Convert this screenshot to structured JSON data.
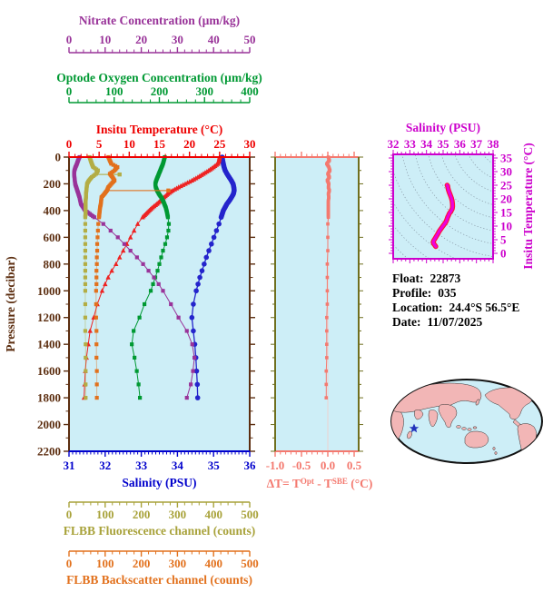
{
  "meta": {
    "rows": [
      {
        "label": "Float:",
        "value": "22873"
      },
      {
        "label": "Profile:",
        "value": "035"
      },
      {
        "label": "Location:",
        "value": "24.4°S  56.5°E"
      },
      {
        "label": "Date:",
        "value": "11/07/2025"
      }
    ]
  },
  "chart_data": [
    {
      "id": "main-profiles",
      "type": "line",
      "background": "#cdeef7",
      "y_axis": {
        "label": "Pressure (decibar)",
        "range": [
          0,
          2200
        ],
        "major_tick": 200,
        "minor_tick": 100,
        "color": "#5c2e10"
      },
      "x_axes": [
        {
          "id": "nitrate",
          "title": "Nitrate Concentration (µm/kg)",
          "range": [
            0,
            50
          ],
          "ticks": [
            0,
            10,
            20,
            30,
            40,
            50
          ],
          "minor_tick": 2,
          "color": "#993399",
          "position": "top"
        },
        {
          "id": "oxygen",
          "title": "Optode Oxygen Concentration (µm/kg)",
          "range": [
            0,
            400
          ],
          "ticks": [
            0,
            100,
            200,
            300,
            400
          ],
          "minor_tick": 20,
          "color": "#009933",
          "position": "top"
        },
        {
          "id": "temperature",
          "title": "Insitu Temperature (°C)",
          "range": [
            0,
            30
          ],
          "ticks": [
            0,
            5,
            10,
            15,
            20,
            25,
            30
          ],
          "minor_tick": 1,
          "color": "#ee0000",
          "position": "top"
        },
        {
          "id": "salinity",
          "title": "Salinity (PSU)",
          "range": [
            31,
            36
          ],
          "ticks": [
            31,
            32,
            33,
            34,
            35,
            36
          ],
          "minor_tick": 0.1,
          "color": "#0000cc",
          "position": "bottom"
        },
        {
          "id": "fluorescence",
          "title": "FLBB Fluorescence channel (counts)",
          "range": [
            0,
            500
          ],
          "ticks": [
            0,
            100,
            200,
            300,
            400,
            500
          ],
          "minor_tick": 20,
          "color": "#a8a23a",
          "position": "bottom"
        },
        {
          "id": "backscatter",
          "title": "FLBB Backscatter channel (counts)",
          "range": [
            0,
            500
          ],
          "ticks": [
            0,
            100,
            200,
            300,
            400,
            500
          ],
          "minor_tick": 20,
          "color": "#e2711d",
          "position": "bottom"
        }
      ],
      "pressure": [
        0,
        25,
        50,
        75,
        100,
        125,
        150,
        175,
        200,
        225,
        250,
        275,
        300,
        325,
        350,
        375,
        400,
        450,
        500,
        550,
        600,
        650,
        700,
        750,
        800,
        850,
        900,
        950,
        1000,
        1100,
        1200,
        1300,
        1400,
        1500,
        1600,
        1700,
        1800
      ],
      "series": [
        {
          "name": "salinity",
          "axis": "salinity",
          "color": "#2424cc",
          "marker": "circle",
          "values": [
            35.24,
            35.25,
            35.27,
            35.29,
            35.32,
            35.37,
            35.43,
            35.49,
            35.54,
            35.56,
            35.57,
            35.55,
            35.5,
            35.44,
            35.37,
            35.32,
            35.27,
            35.21,
            35.15,
            35.08,
            35.01,
            34.94,
            34.87,
            34.8,
            34.74,
            34.68,
            34.62,
            34.57,
            34.52,
            34.44,
            34.4,
            34.44,
            34.48,
            34.51,
            34.53,
            34.55,
            34.56
          ]
        },
        {
          "name": "temperature",
          "axis": "temperature",
          "color": "#ee2222",
          "marker": "triangle",
          "values": [
            25.0,
            24.9,
            24.7,
            24.0,
            23.2,
            22.3,
            21.4,
            20.4,
            19.3,
            18.2,
            17.2,
            16.4,
            15.8,
            15.2,
            14.6,
            13.9,
            13.3,
            12.2,
            11.4,
            10.8,
            10.2,
            9.6,
            9.0,
            8.4,
            7.8,
            7.1,
            6.5,
            6.0,
            5.5,
            4.7,
            4.1,
            3.5,
            3.2,
            2.9,
            2.7,
            2.6,
            2.5
          ]
        },
        {
          "name": "oxygen",
          "axis": "oxygen",
          "color": "#009933",
          "marker": "square",
          "values": [
            212,
            210,
            208,
            205,
            202,
            199,
            196,
            193,
            191,
            192,
            195,
            199,
            204,
            208,
            211,
            214,
            216,
            219,
            221,
            220,
            217,
            213,
            208,
            204,
            200,
            196,
            191,
            186,
            181,
            167,
            156,
            143,
            139,
            145,
            150,
            154,
            157
          ]
        },
        {
          "name": "nitrate",
          "axis": "nitrate",
          "color": "#993399",
          "marker": "square",
          "values": [
            2.9,
            2.5,
            2.2,
            1.8,
            1.5,
            1.4,
            1.5,
            1.6,
            1.7,
            2.0,
            2.3,
            2.6,
            2.9,
            3.1,
            3.3,
            3.9,
            4.5,
            7.0,
            9.5,
            11.5,
            13.5,
            15.3,
            17.0,
            18.8,
            20.5,
            22.0,
            23.5,
            24.8,
            26.0,
            28.2,
            30.3,
            32.6,
            34.1,
            34.7,
            34.3,
            33.7,
            32.6
          ]
        },
        {
          "name": "fluorescence",
          "axis": "fluorescence",
          "color": "#b3ad45",
          "marker": "square",
          "line_opacity": 0.45,
          "values": [
            57,
            60,
            63,
            67,
            80,
            75,
            63,
            55,
            50,
            49,
            48,
            47,
            47,
            46,
            46,
            46,
            46,
            45,
            45,
            45,
            45,
            45,
            45,
            45,
            45,
            45,
            45,
            45,
            45,
            45,
            45,
            45,
            46,
            46,
            46,
            46,
            46
          ],
          "spikes": [
            {
              "pressure": 130,
              "value": 140
            }
          ]
        },
        {
          "name": "backscatter",
          "axis": "backscatter",
          "color": "#e2711d",
          "marker": "square",
          "line_opacity": 0.45,
          "values": [
            109,
            113,
            117,
            134,
            126,
            113,
            120,
            126,
            117,
            109,
            105,
            98,
            90,
            89,
            88,
            86,
            85,
            83,
            81,
            80,
            79,
            78,
            78,
            77,
            77,
            76,
            76,
            76,
            75,
            75,
            75,
            76,
            76,
            76,
            77,
            77,
            77
          ],
          "spikes": [
            {
              "pressure": 250,
              "value": 275
            }
          ]
        }
      ]
    },
    {
      "id": "delta-t",
      "type": "line",
      "background": "#cdeef7",
      "x_axis": {
        "title_parts": [
          {
            "text": "ΔT= T"
          },
          {
            "text": "Opt",
            "sup": true
          },
          {
            "text": " - T"
          },
          {
            "text": "SBE",
            "sup": true
          },
          {
            "text": " (°C)"
          }
        ],
        "range": [
          -1.0,
          0.586
        ],
        "ticks": [
          -1.0,
          -0.5,
          0.0,
          0.5
        ],
        "tick_labels": [
          "-1.0",
          "-0.5",
          "0.0",
          "0.5"
        ],
        "minor_tick": 0.1,
        "color": "#f4796f",
        "side_color": "#6f6f1f"
      },
      "pressure": [
        0,
        25,
        50,
        75,
        100,
        125,
        150,
        175,
        200,
        225,
        250,
        275,
        300,
        325,
        350,
        400,
        450,
        500,
        600,
        700,
        800,
        900,
        1000,
        1100,
        1200,
        1300,
        1400,
        1500,
        1600,
        1700,
        1800
      ],
      "values": [
        0.01,
        0.03,
        -0.02,
        0.02,
        0.04,
        0.0,
        0.03,
        -0.01,
        0.02,
        0.01,
        0.03,
        0.01,
        0.02,
        0.01,
        0.01,
        0.01,
        0.01,
        0.0,
        0.0,
        0.0,
        -0.01,
        -0.01,
        -0.01,
        -0.01,
        -0.02,
        -0.02,
        -0.02,
        -0.02,
        -0.03,
        -0.03,
        -0.03
      ]
    },
    {
      "id": "ts-diagram",
      "type": "scatter",
      "background": "#cdeef7",
      "frame_color": "#cc00cc",
      "x_axis": {
        "title": "Salinity (PSU)",
        "range": [
          32,
          38
        ],
        "ticks": [
          32,
          33,
          34,
          35,
          36,
          37,
          38
        ],
        "minor_tick": 0.25
      },
      "y_axis": {
        "title": "Insitu Temperature (°C)",
        "range": [
          -2,
          36.3
        ],
        "ticks": [
          0,
          5,
          10,
          15,
          20,
          25,
          30,
          35
        ],
        "minor_tick": 1
      },
      "curve_colors": {
        "outer": "#ff1133",
        "inner": "#ee00dd"
      },
      "isopycnal_color": "#8899a6",
      "curve_source": "salinity and temperature series of main-profiles"
    },
    {
      "id": "location-map",
      "type": "map",
      "ocean_color": "#cdeef7",
      "land_color": "#f2b6b6",
      "outline_color": "#111111",
      "marker": {
        "shape": "star",
        "color": "#2233bb"
      }
    }
  ]
}
